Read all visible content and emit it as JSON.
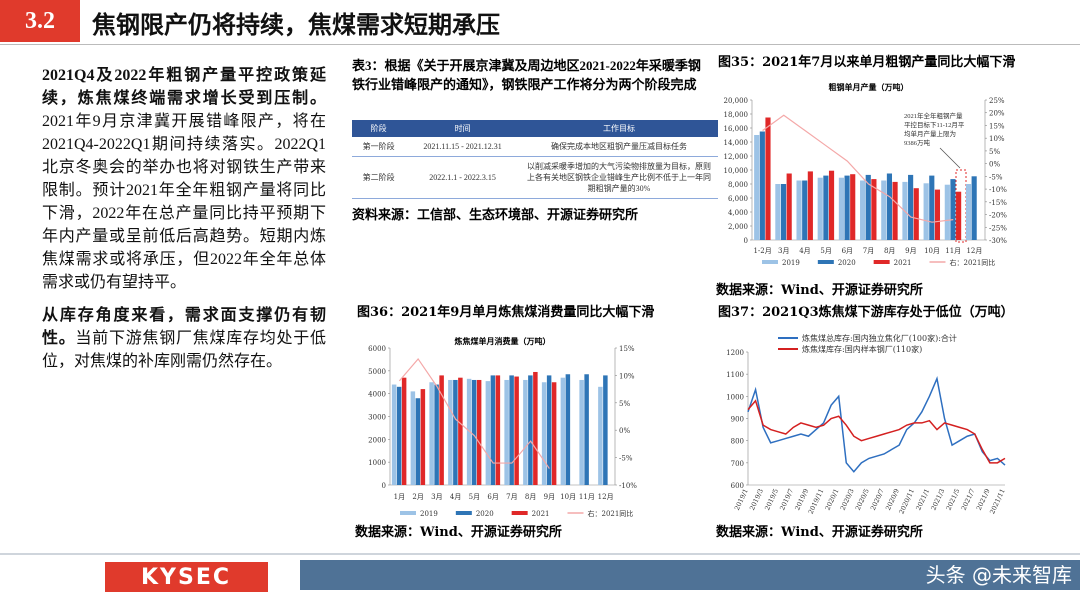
{
  "header": {
    "number": "3.2",
    "title": "焦钢限产仍将持续，焦煤需求短期承压"
  },
  "paragraphs": [
    {
      "bold": "2021Q4及2022年粗钢产量平控政策延续，炼焦煤终端需求增长受到压制。",
      "text": "2021年9月京津冀开展错峰限产，将在2021Q4-2022Q1期间持续落实。2022Q1北京冬奥会的举办也将对钢铁生产带来限制。预计2021年全年粗钢产量将同比下滑，2022年在总产量同比持平预期下年内产量或呈前低后高趋势。短期内炼焦煤需求或将承压，但2022年全年总体需求或仍有望持平。"
    },
    {
      "bold": "从库存角度来看，需求面支撑仍有韧性。",
      "text": "当前下游焦钢厂焦煤库存均处于低位，对焦煤的补库刚需仍然存在。"
    }
  ],
  "table": {
    "title": "表3：根据《关于开展京津冀及周边地区2021-2022年采暖季钢铁行业错峰限产的通知》，钢铁限产工作将分为两个阶段完成",
    "columns": [
      "阶段",
      "时间",
      "工作目标"
    ],
    "rows": [
      [
        "第一阶段",
        "2021.11.15 - 2021.12.31",
        "确保完成本地区粗钢产量压减目标任务"
      ],
      [
        "第二阶段",
        "2022.1.1 - 2022.3.15",
        "以削减采暖季增加的大气污染物排放量为目标，原则上各有关地区钢铁企业错峰生产比例不低于上一年同期粗钢产量的30%"
      ]
    ],
    "source": "资料来源：工信部、生态环境部、开源证券研究所"
  },
  "chart_data": [
    {
      "type": "bar",
      "title": "图35：2021年7月以来单月粗钢产量同比大幅下滑",
      "subtitle": "粗钢单月产量（万吨）",
      "annotation": "2021年全年粗钢产量平控目标下11-12月平均单月产量上限为9386万吨",
      "source": "数据来源：Wind、开源证券研究所",
      "categories": [
        "1-2月",
        "3月",
        "4月",
        "5月",
        "6月",
        "7月",
        "8月",
        "9月",
        "10月",
        "11月",
        "12月"
      ],
      "series": [
        {
          "name": "2019",
          "color": "#9dc3e6",
          "values": [
            15000,
            8000,
            8500,
            8900,
            8900,
            8500,
            8500,
            8300,
            8100,
            7900,
            8000
          ]
        },
        {
          "name": "2020",
          "color": "#2e75b6",
          "values": [
            15500,
            8000,
            8500,
            9200,
            9200,
            9300,
            9500,
            9300,
            9200,
            8700,
            9100
          ]
        },
        {
          "name": "2021",
          "color": "#e02828",
          "values": [
            17500,
            9500,
            9800,
            9900,
            9400,
            8700,
            8300,
            7400,
            7200,
            6900,
            null
          ]
        },
        {
          "name": "右：2021同比",
          "color": "#f4a8a8",
          "axis": "y2",
          "values": [
            13,
            19,
            13,
            7,
            1,
            -8,
            -13,
            -21,
            -23,
            -22,
            null
          ]
        }
      ],
      "ylim": [
        0,
        20000
      ],
      "yticks": [
        0,
        {
          "value": 2000,
          "label": "2,000"
        },
        {
          "value": 4000,
          "label": "4,000"
        },
        {
          "value": 6000,
          "label": "6,000"
        },
        {
          "value": 8000,
          "label": "8,000"
        },
        {
          "value": 10000,
          "label": "10,000"
        },
        {
          "value": 12000,
          "label": "12,000"
        },
        {
          "value": 14000,
          "label": "14,000"
        },
        {
          "value": 16000,
          "label": "16,000"
        },
        {
          "value": 18000,
          "label": "18,000"
        },
        {
          "value": 20000,
          "label": "20,000"
        }
      ],
      "y2lim": [
        -30,
        25
      ],
      "y2ticks": [
        {
          "value": -30,
          "label": "-30%"
        },
        {
          "value": -25,
          "label": "-25%"
        },
        {
          "value": -20,
          "label": "-20%"
        },
        {
          "value": -15,
          "label": "-15%"
        },
        {
          "value": -10,
          "label": "-10%"
        },
        {
          "value": -5,
          "label": "-5%"
        },
        {
          "value": 0,
          "label": "0%"
        },
        {
          "value": 5,
          "label": "5%"
        },
        {
          "value": 10,
          "label": "10%"
        },
        {
          "value": 15,
          "label": "15%"
        },
        {
          "value": 20,
          "label": "20%"
        },
        {
          "value": 25,
          "label": "25%"
        }
      ]
    },
    {
      "type": "bar",
      "title": "图36：2021年9月单月炼焦煤消费量同比大幅下滑",
      "subtitle": "炼焦煤单月消费量（万吨）",
      "source": "数据来源：Wind、开源证券研究所",
      "categories": [
        "1月",
        "2月",
        "3月",
        "4月",
        "5月",
        "6月",
        "7月",
        "8月",
        "9月",
        "10月",
        "11月",
        "12月"
      ],
      "series": [
        {
          "name": "2019",
          "color": "#9dc3e6",
          "values": [
            4400,
            4100,
            4500,
            4600,
            4650,
            4550,
            4600,
            4600,
            4500,
            4700,
            4600,
            4300
          ]
        },
        {
          "name": "2020",
          "color": "#2e75b6",
          "values": [
            4300,
            3800,
            4400,
            4600,
            4600,
            4800,
            4800,
            4800,
            4800,
            4850,
            4850,
            4800
          ]
        },
        {
          "name": "2021",
          "color": "#e02828",
          "values": [
            4700,
            4200,
            4800,
            4700,
            4600,
            4800,
            4750,
            4950,
            4500,
            null,
            null,
            null
          ]
        },
        {
          "name": "右：2021同比",
          "color": "#f4a8a8",
          "axis": "y2",
          "values": [
            9,
            13,
            8,
            2,
            -1,
            -6,
            -6,
            -2,
            -7,
            null,
            null,
            null
          ]
        }
      ],
      "ylim": [
        0,
        6000
      ],
      "yticks": [
        0,
        1000,
        2000,
        3000,
        4000,
        5000,
        6000
      ],
      "y2lim": [
        -10,
        15
      ],
      "y2ticks": [
        {
          "value": -10,
          "label": "-10%"
        },
        {
          "value": -5,
          "label": "-5%"
        },
        {
          "value": 0,
          "label": "0%"
        },
        {
          "value": 5,
          "label": "5%"
        },
        {
          "value": 10,
          "label": "10%"
        },
        {
          "value": 15,
          "label": "15%"
        }
      ]
    },
    {
      "type": "line",
      "title": "图37：2021Q3炼焦煤下游库存处于低位（万吨）",
      "source": "数据来源：Wind、开源证券研究所",
      "categories": [
        "2019/1",
        null,
        "2019/3",
        null,
        "2019/5",
        null,
        "2019/7",
        null,
        "2019/9",
        null,
        "2019/11",
        null,
        "2020/1",
        null,
        "2020/3",
        null,
        "2020/5",
        null,
        "2020/7",
        null,
        "2020/9",
        null,
        "2020/11",
        null,
        "2021/1",
        null,
        "2021/3",
        null,
        "2021/5",
        null,
        "2021/7",
        null,
        "2021/9",
        null,
        "2021/11"
      ],
      "series": [
        {
          "name": "炼焦煤总库存:国内独立焦化厂(100家):合计",
          "color": "#2e6fc0",
          "values": [
            930,
            1030,
            860,
            790,
            800,
            810,
            820,
            830,
            820,
            850,
            880,
            960,
            1000,
            700,
            660,
            700,
            720,
            730,
            740,
            760,
            780,
            850,
            880,
            930,
            1000,
            1080,
            900,
            780,
            800,
            820,
            830,
            750,
            710,
            720,
            690
          ]
        },
        {
          "name": "炼焦煤库存:国内样本钢厂(110家)",
          "color": "#d42020",
          "values": [
            940,
            980,
            870,
            850,
            840,
            830,
            860,
            880,
            870,
            860,
            870,
            900,
            910,
            870,
            820,
            800,
            810,
            820,
            830,
            840,
            850,
            870,
            880,
            880,
            890,
            850,
            880,
            870,
            860,
            850,
            830,
            760,
            700,
            700,
            720
          ]
        }
      ],
      "ylim": [
        600,
        1200
      ],
      "yticks": [
        600,
        700,
        800,
        900,
        1000,
        1100,
        1200
      ]
    }
  ],
  "footer": {
    "logo": "KYSEC",
    "watermark": "头条 @未来智库"
  }
}
